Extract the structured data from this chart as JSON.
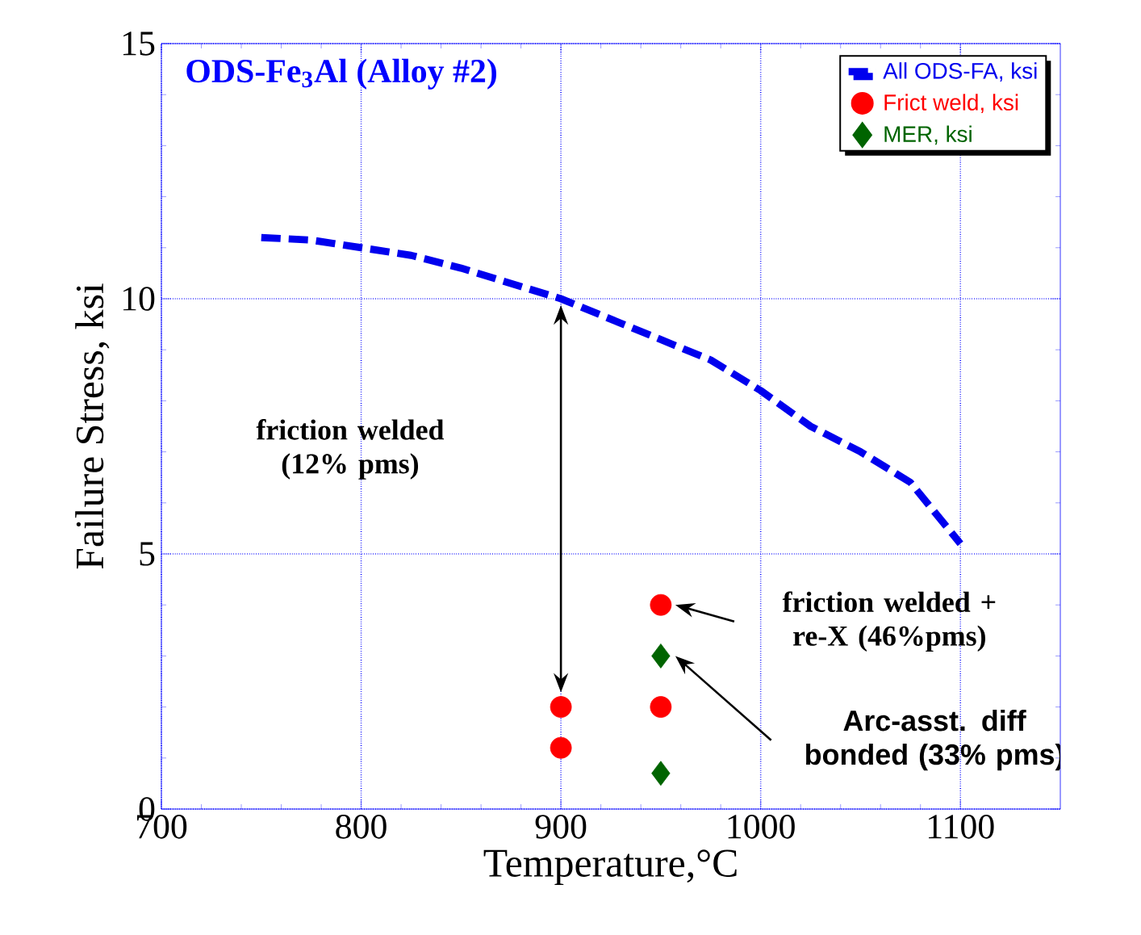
{
  "chart_data": {
    "type": "line",
    "title": "ODS-Fe$_{3}$Al (Alloy #2)",
    "xlabel": "Temperature,°C",
    "ylabel": "Failure Stress, ksi",
    "xlim": [
      700,
      1150
    ],
    "ylim": [
      0,
      15
    ],
    "xticks": [
      700,
      800,
      900,
      1000,
      1100
    ],
    "yticks": [
      0,
      5,
      10,
      15
    ],
    "grid": true,
    "legend": "top right",
    "series": [
      {
        "name": "All ODS-FA, ksi",
        "type": "line",
        "color": "#0000ee",
        "marker": "none",
        "line_style": "dashed",
        "x": [
          750,
          775,
          800,
          825,
          850,
          875,
          900,
          925,
          950,
          975,
          1000,
          1025,
          1050,
          1075,
          1100
        ],
        "values": [
          11.2,
          11.15,
          11.0,
          10.85,
          10.6,
          10.3,
          10.0,
          9.6,
          9.2,
          8.8,
          8.2,
          7.5,
          7.0,
          6.4,
          5.2
        ]
      },
      {
        "name": "Frict weld, ksi",
        "type": "scatter",
        "color": "#ff0000",
        "marker": "circle",
        "x": [
          900,
          900,
          950,
          950
        ],
        "values": [
          2,
          1.2,
          4,
          2
        ]
      },
      {
        "name": "MER, ksi",
        "type": "scatter",
        "color": "#006400",
        "marker": "diamond",
        "x": [
          950,
          950
        ],
        "values": [
          3,
          0.7
        ]
      }
    ],
    "annotations": [
      "friction welded (12% pms)",
      "friction welded + re-X (46%pms)",
      "Arc-asst. diff bonded (33% pms)"
    ]
  }
}
